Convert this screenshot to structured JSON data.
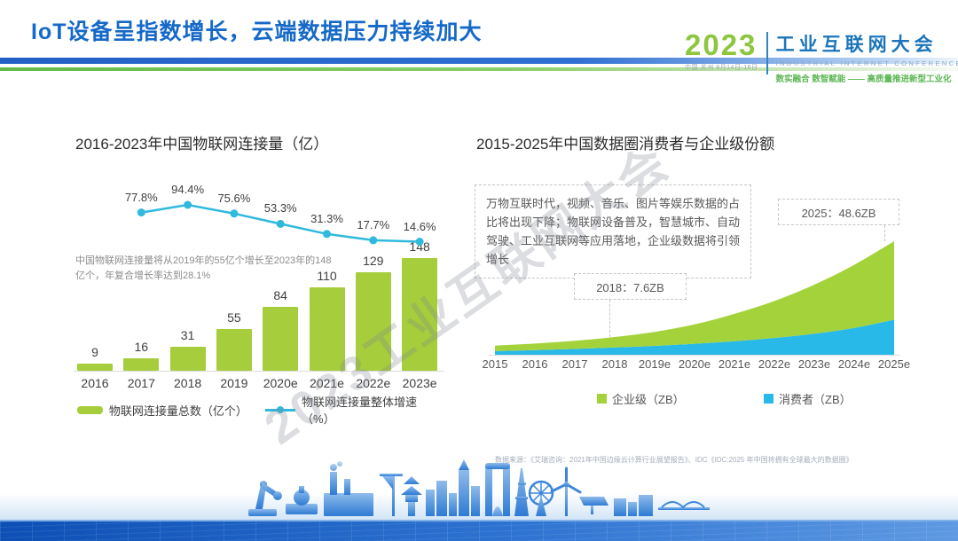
{
  "header": {
    "title": "IoT设备呈指数增长，云端数据压力持续加大",
    "logo": {
      "year": "2023",
      "venue": "中国·苏州  8月14日-16日",
      "name_cn": "工业互联网大会",
      "name_en": "INDUSTRIAL INTERNET CONFERENCE",
      "tagline": "数实融合  数智赋能 —— 高质量推进新型工业化"
    }
  },
  "watermark": "2023工业互联网大会",
  "footer": {
    "source": "数据来源：《艾瑞咨询：2021年中国边缘云计算行业展望报告》、IDC《IDC:2025 年中国将拥有全球最大的数据圈》"
  },
  "colors": {
    "title_blue": "#1569c8",
    "bar_green": "#a6cd3b",
    "line_cyan": "#2fb9dd",
    "area_green": "#a4d23b",
    "area_blue": "#29b9e8",
    "logo_green": "#8dc63f",
    "logo_blue": "#1b75bb"
  },
  "chart_data": [
    {
      "type": "bar",
      "title": "2016-2023年中国物联网连接量（亿）",
      "categories": [
        "2016",
        "2017",
        "2018",
        "2019",
        "2020e",
        "2021e",
        "2022e",
        "2023e"
      ],
      "series": [
        {
          "name": "物联网连接量总数（亿个）",
          "type": "bar",
          "values": [
            9,
            16,
            31,
            55,
            84,
            110,
            129,
            148
          ]
        },
        {
          "name": "物联网连接量整体增速（%）",
          "type": "line",
          "values": [
            null,
            77.8,
            94.4,
            75.6,
            53.3,
            31.3,
            17.7,
            14.6
          ]
        }
      ],
      "annotation": "中国物联网连接量将从2019年的55亿个增长至2023年的148亿个，年复合增长率达到28.1%",
      "ylim": [
        0,
        160
      ],
      "legend_position": "bottom",
      "grid": false
    },
    {
      "type": "area",
      "title": "2015-2025年中国数据圈消费者与企业级份额",
      "x": [
        "2015",
        "2016",
        "2017",
        "2018",
        "2019e",
        "2020e",
        "2021e",
        "2022e",
        "2023e",
        "2024e",
        "2025e"
      ],
      "stacked": true,
      "series": [
        {
          "name": "消费者（ZB）",
          "values": [
            1.6,
            2.0,
            2.5,
            3.1,
            3.8,
            4.7,
            5.8,
            7.2,
            9.0,
            11.5,
            15.0
          ]
        },
        {
          "name": "企业级（ZB）",
          "values": [
            2.3,
            2.8,
            3.5,
            4.5,
            6.0,
            8.3,
            11.7,
            15.8,
            21.0,
            27.0,
            33.6
          ]
        }
      ],
      "callouts": [
        {
          "label": "2018：7.6ZB"
        },
        {
          "label": "2025：48.6ZB"
        }
      ],
      "annotation": "万物互联时代，视频、音乐、图片等娱乐数据的占比将出现下降；物联网设备普及，智慧城市、自动驾驶、工业互联网等应用落地，企业级数据将引领增长",
      "ylim": [
        0,
        50
      ],
      "legend_position": "bottom",
      "grid": false
    }
  ]
}
